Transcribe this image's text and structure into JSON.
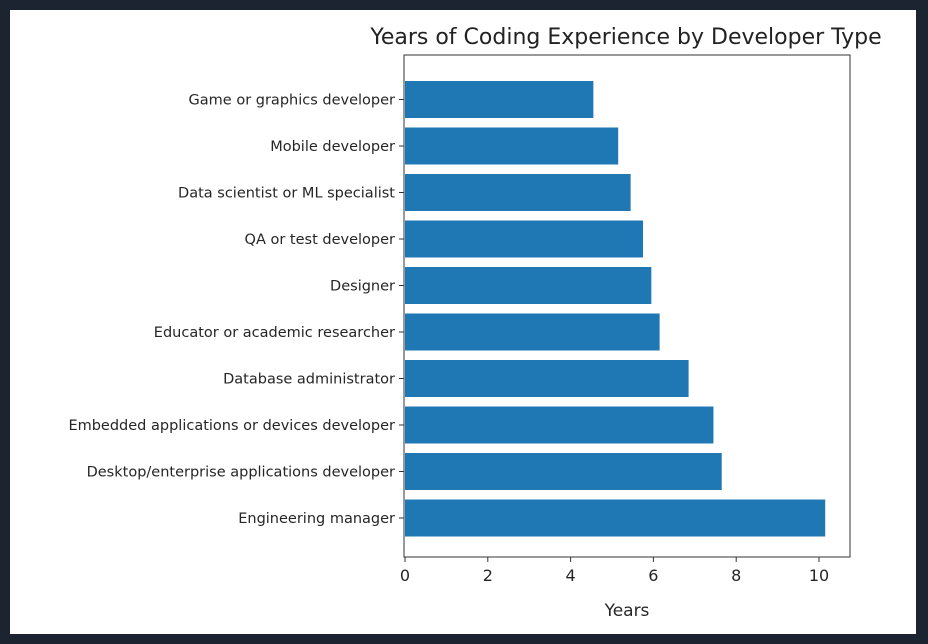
{
  "chart_data": {
    "type": "bar",
    "orientation": "horizontal",
    "title": "Years of Coding Experience by Developer Type",
    "xlabel": "Years",
    "ylabel": "",
    "xlim": [
      0,
      10.7
    ],
    "xticks": [
      0,
      2,
      4,
      6,
      8,
      10
    ],
    "grid": false,
    "bar_color": "#1f77b4",
    "categories": [
      "Engineering manager",
      "Desktop/enterprise applications developer",
      "Embedded applications or devices developer",
      "Database administrator",
      "Educator or academic researcher",
      "Designer",
      "QA or test developer",
      "Data scientist or ML specialist",
      "Mobile developer",
      "Game or graphics developer"
    ],
    "values": [
      10.15,
      7.65,
      7.45,
      6.85,
      6.15,
      5.95,
      5.75,
      5.45,
      5.15,
      4.55
    ]
  }
}
